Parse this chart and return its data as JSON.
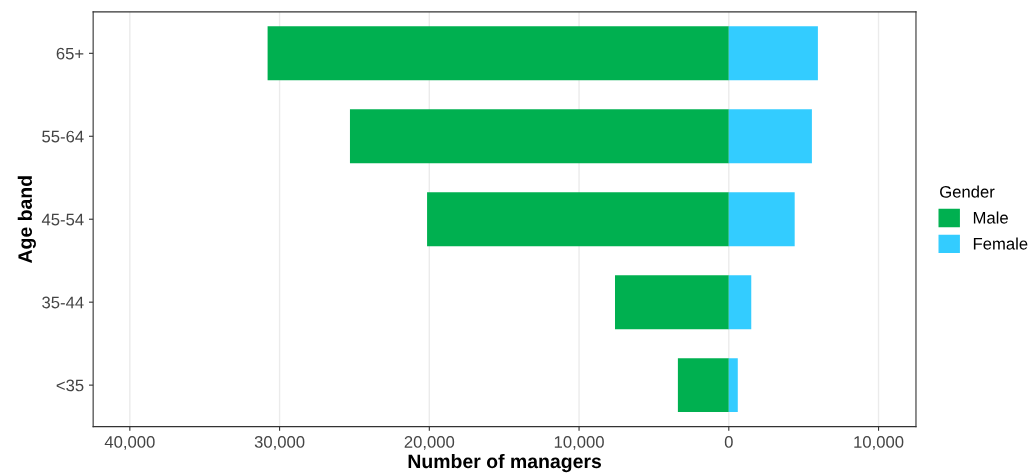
{
  "chart_data": {
    "type": "bar",
    "orientation": "horizontal",
    "stacked": true,
    "categories": [
      "65+",
      "55-64",
      "45-54",
      "35-44",
      "<35"
    ],
    "series": [
      {
        "name": "Male",
        "color": "#00b050",
        "values": [
          -30800,
          -25300,
          -20150,
          -7600,
          -3400
        ]
      },
      {
        "name": "Female",
        "color": "#33ccff",
        "values": [
          5950,
          5550,
          4400,
          1500,
          600
        ]
      }
    ],
    "xlabel": "Number of managers",
    "ylabel": "Age band",
    "legend_title": "Gender",
    "legend": "right",
    "xlim": [
      -42450,
      12500
    ],
    "xticks": [
      {
        "value": -40000,
        "label": "40,000"
      },
      {
        "value": -30000,
        "label": "30,000"
      },
      {
        "value": -20000,
        "label": "20,000"
      },
      {
        "value": -10000,
        "label": "10,000"
      },
      0,
      {
        "value": 10000,
        "label": "10,000"
      }
    ],
    "grid": "x"
  }
}
